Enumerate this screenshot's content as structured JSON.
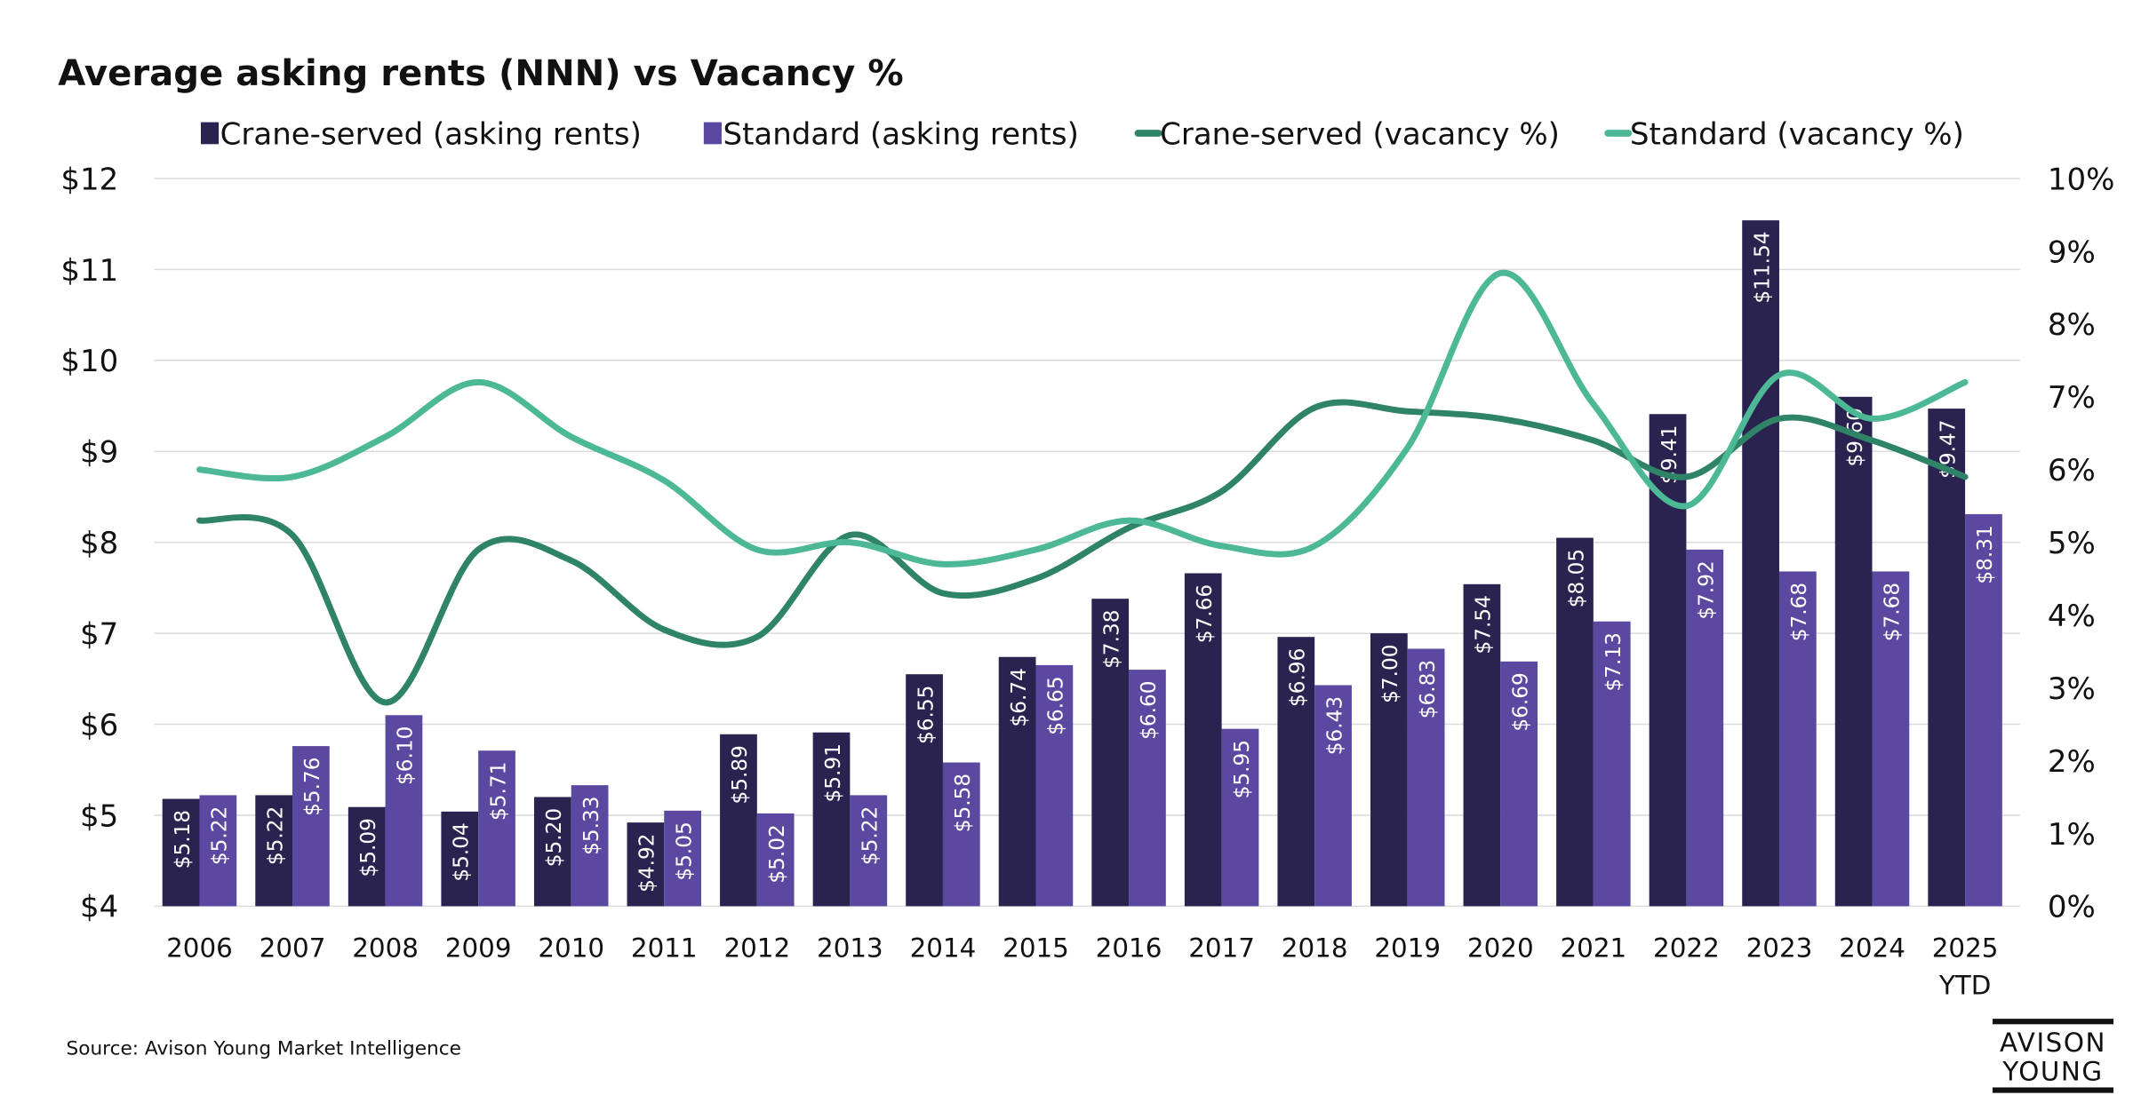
{
  "chart_data": {
    "type": "bar",
    "title": "Average asking rents (NNN) vs Vacancy %",
    "categories": [
      "2006",
      "2007",
      "2008",
      "2009",
      "2010",
      "2011",
      "2012",
      "2013",
      "2014",
      "2015",
      "2016",
      "2017",
      "2018",
      "2019",
      "2020",
      "2021",
      "2022",
      "2023",
      "2024",
      "2025"
    ],
    "category_sublabels": {
      "2025": "YTD"
    },
    "y_left": {
      "min": 4,
      "max": 12,
      "ticks": [
        "$4",
        "$5",
        "$6",
        "$7",
        "$8",
        "$9",
        "$10",
        "$11",
        "$12"
      ]
    },
    "y_right": {
      "min": 0,
      "max": 10,
      "ticks": [
        "0%",
        "1%",
        "2%",
        "3%",
        "4%",
        "5%",
        "6%",
        "7%",
        "8%",
        "9%",
        "10%"
      ]
    },
    "grid": true,
    "legend_position": "top",
    "series": [
      {
        "name": "Crane-served (asking rents)",
        "type": "bar",
        "axis": "left",
        "color": "#2a2350",
        "values": [
          5.18,
          5.22,
          5.09,
          5.04,
          5.2,
          4.92,
          5.89,
          5.91,
          6.55,
          6.74,
          7.38,
          7.66,
          6.96,
          7.0,
          7.54,
          8.05,
          9.41,
          11.54,
          9.6,
          9.47
        ],
        "labels": [
          "$5.18",
          "$5.22",
          "$5.09",
          "$5.04",
          "$5.20",
          "$4.92",
          "$5.89",
          "$5.91",
          "$6.55",
          "$6.74",
          "$7.38",
          "$7.66",
          "$6.96",
          "$7.00",
          "$7.54",
          "$8.05",
          "$9.41",
          "$11.54",
          "$9.60",
          "$9.47"
        ]
      },
      {
        "name": "Standard (asking rents)",
        "type": "bar",
        "axis": "left",
        "color": "#5b48a0",
        "values": [
          5.22,
          5.76,
          6.1,
          5.71,
          5.33,
          5.05,
          5.02,
          5.22,
          5.58,
          6.65,
          6.6,
          5.95,
          6.43,
          6.83,
          6.69,
          7.13,
          7.92,
          7.68,
          7.68,
          8.31
        ],
        "labels": [
          "$5.22",
          "$5.76",
          "$6.10",
          "$5.71",
          "$5.33",
          "$5.05",
          "$5.02",
          "$5.22",
          "$5.58",
          "$6.65",
          "$6.60",
          "$5.95",
          "$6.43",
          "$6.83",
          "$6.69",
          "$7.13",
          "$7.92",
          "$7.68",
          "$7.68",
          "$8.31"
        ]
      },
      {
        "name": "Crane-served (vacancy %)",
        "type": "line",
        "axis": "right",
        "color": "#2f8468",
        "values": [
          5.3,
          5.1,
          2.8,
          4.9,
          4.75,
          3.8,
          3.7,
          5.1,
          4.3,
          4.5,
          5.2,
          5.7,
          6.85,
          6.8,
          6.7,
          6.4,
          5.9,
          6.7,
          6.4,
          5.9
        ]
      },
      {
        "name": "Standard (vacancy %)",
        "type": "line",
        "axis": "right",
        "color": "#4cb896",
        "values": [
          6.0,
          5.9,
          6.45,
          7.2,
          6.45,
          5.85,
          4.9,
          5.0,
          4.7,
          4.9,
          5.3,
          4.95,
          4.95,
          6.3,
          8.7,
          6.9,
          5.5,
          7.3,
          6.7,
          7.2
        ]
      }
    ]
  },
  "source": "Source: Avison Young Market Intelligence",
  "logo": {
    "line1": "AVISON",
    "line2": "YOUNG"
  }
}
